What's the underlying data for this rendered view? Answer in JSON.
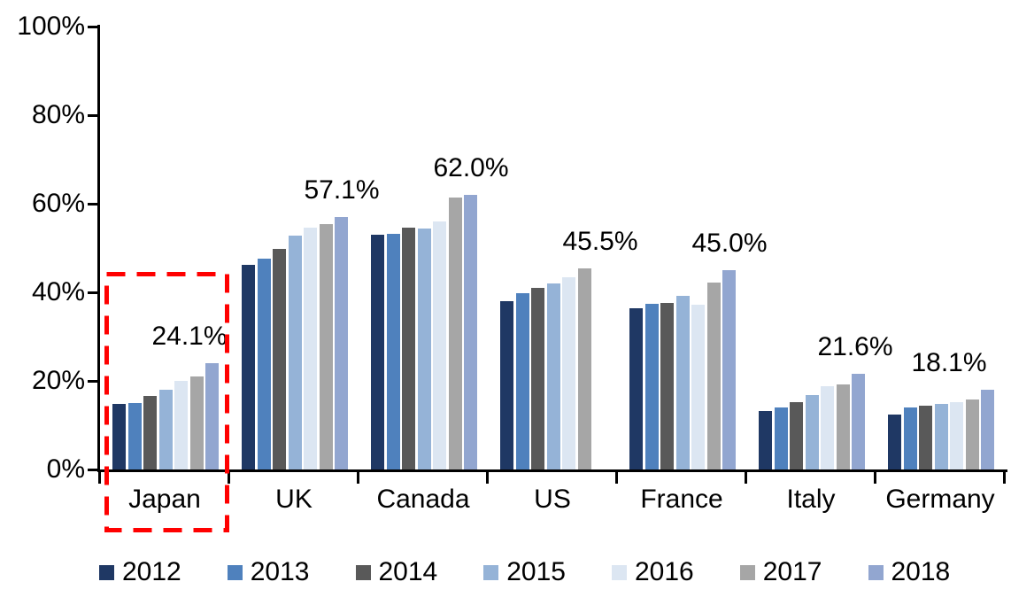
{
  "chart_data": {
    "type": "bar",
    "title": "",
    "categories": [
      "Japan",
      "UK",
      "Canada",
      "US",
      "France",
      "Italy",
      "Germany"
    ],
    "series": [
      {
        "name": "2012",
        "color": "#1F3864",
        "values": [
          14.8,
          46.2,
          53.0,
          38.0,
          36.4,
          13.3,
          12.5
        ]
      },
      {
        "name": "2013",
        "color": "#4F81BD",
        "values": [
          15.0,
          47.6,
          53.3,
          39.8,
          37.5,
          14.1,
          14.0
        ]
      },
      {
        "name": "2014",
        "color": "#595959",
        "values": [
          16.6,
          49.8,
          54.7,
          41.0,
          37.6,
          15.3,
          14.4
        ]
      },
      {
        "name": "2015",
        "color": "#95B3D7",
        "values": [
          18.0,
          52.9,
          54.4,
          42.0,
          39.3,
          16.8,
          14.8
        ]
      },
      {
        "name": "2016",
        "color": "#DCE6F2",
        "values": [
          20.1,
          54.6,
          56.0,
          43.4,
          37.3,
          18.9,
          15.3
        ]
      },
      {
        "name": "2017",
        "color": "#A6A6A6",
        "values": [
          21.0,
          55.5,
          61.4,
          45.5,
          42.2,
          19.2,
          15.8
        ]
      },
      {
        "name": "2018",
        "color": "#92A6D0",
        "values": [
          24.1,
          57.1,
          62.0,
          null,
          45.0,
          21.6,
          18.1
        ]
      }
    ],
    "value_labels": [
      {
        "category": "Japan",
        "text": "24.1%",
        "value": 24.1,
        "dx": -26
      },
      {
        "category": "UK",
        "text": "57.1%",
        "value": 57.1,
        "dx": 0
      },
      {
        "category": "Canada",
        "text": "62.0%",
        "value": 62.0,
        "dx": 0
      },
      {
        "category": "US",
        "text": "45.5%",
        "value": 45.5,
        "dx": 0
      },
      {
        "category": "France",
        "text": "45.0%",
        "value": 45.0,
        "dx": 0
      },
      {
        "category": "Italy",
        "text": "21.6%",
        "value": 21.6,
        "dx": -4
      },
      {
        "category": "Germany",
        "text": "18.1%",
        "value": 18.1,
        "dx": -44
      }
    ],
    "y_axis": {
      "min": 0,
      "max": 100,
      "tick_labels": [
        "0%",
        "20%",
        "40%",
        "60%",
        "80%",
        "100%"
      ],
      "grid": false
    },
    "legend": {
      "position": "bottom",
      "entries": [
        "2012",
        "2013",
        "2014",
        "2015",
        "2016",
        "2017",
        "2018"
      ]
    },
    "highlight_box": {
      "category": "Japan",
      "color": "#FF0000",
      "style": "dashed"
    },
    "axis_color": "#000000"
  }
}
